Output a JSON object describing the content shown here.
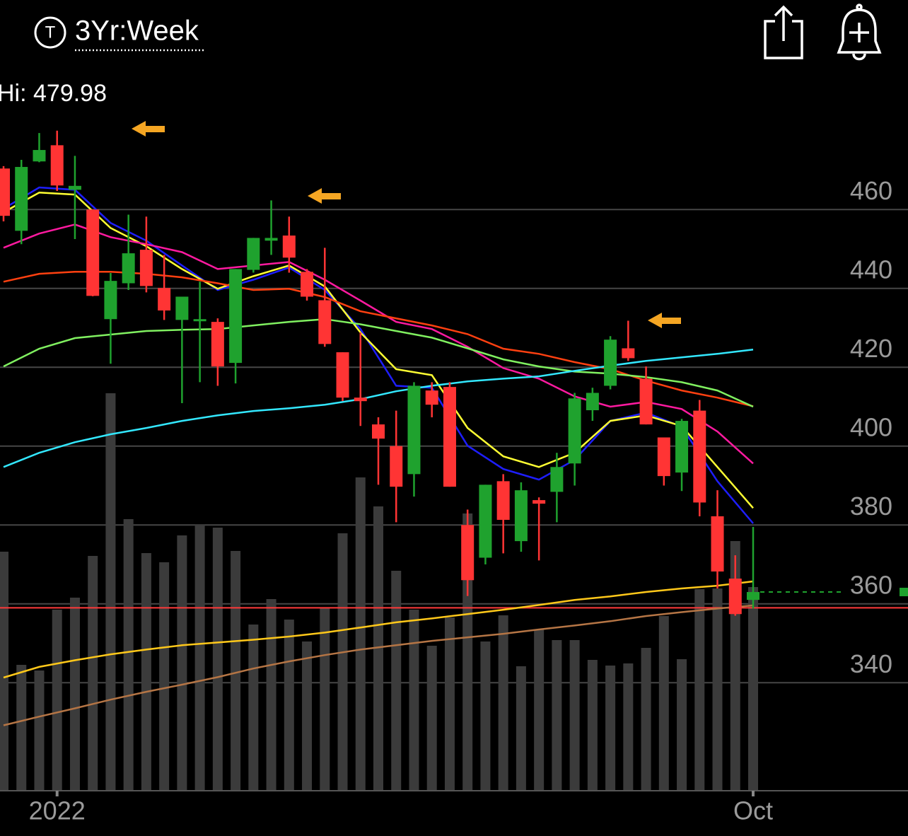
{
  "chart_data": {
    "type": "candlestick",
    "icon_letter": "T",
    "period": "3Yr:Week",
    "hi_label": "Hi: 479.98",
    "categories": [
      null,
      null,
      null,
      "2022",
      null,
      null,
      null,
      null,
      null,
      null,
      null,
      null,
      null,
      null,
      null,
      null,
      null,
      null,
      null,
      null,
      null,
      null,
      null,
      null,
      null,
      null,
      null,
      null,
      null,
      null,
      null,
      null,
      null,
      null,
      null,
      null,
      null,
      null,
      null,
      null,
      null,
      null,
      "Oct"
    ],
    "open": [
      470.4,
      454.6,
      472.2,
      476.3,
      465.0,
      460.0,
      432.2,
      441.3,
      449.8,
      440.1,
      432.0,
      432.0,
      431.5,
      421.1,
      444.7,
      452.1,
      453.4,
      444.2,
      437.0,
      423.8,
      412.3,
      405.5,
      400.0,
      392.9,
      414.1,
      415.0,
      380.0,
      371.7,
      391.1,
      375.9,
      386.3,
      388.4,
      395.6,
      409.1,
      415.3,
      424.8,
      417.1,
      402.2,
      393.3,
      409.0,
      382.2,
      366.4,
      361.0
    ],
    "high": [
      471.0,
      472.6,
      479.4,
      480.0,
      473.6,
      460.0,
      443.9,
      458.7,
      458.2,
      448.5,
      437.9,
      441.7,
      432.4,
      444.9,
      452.8,
      462.3,
      458.2,
      444.9,
      450.3,
      423.8,
      428.8,
      407.3,
      409.0,
      416.2,
      416.2,
      416.2,
      383.9,
      390.2,
      392.9,
      390.8,
      387.0,
      398.3,
      413.5,
      414.8,
      427.9,
      431.8,
      420.2,
      402.2,
      406.9,
      411.7,
      388.8,
      372.3,
      379.5
    ],
    "low": [
      457.0,
      451.2,
      472.0,
      464.7,
      452.5,
      438.0,
      420.9,
      439.6,
      439.0,
      432.0,
      410.9,
      416.2,
      415.3,
      415.9,
      444.0,
      448.5,
      444.0,
      436.9,
      425.2,
      411.4,
      405.1,
      390.2,
      380.7,
      387.2,
      407.3,
      389.7,
      362.0,
      370.0,
      372.8,
      373.2,
      371.0,
      380.7,
      390.0,
      406.4,
      414.4,
      421.6,
      405.5,
      390.0,
      388.6,
      382.2,
      363.9,
      357.0,
      358.8
    ],
    "close": [
      458.4,
      470.8,
      475.1,
      466.1,
      466.0,
      438.1,
      441.9,
      448.9,
      440.6,
      434.4,
      437.9,
      432.2,
      420.2,
      444.9,
      452.8,
      452.8,
      447.8,
      437.9,
      425.9,
      412.3,
      411.4,
      401.9,
      389.7,
      415.3,
      410.5,
      389.7,
      366.0,
      390.2,
      381.3,
      388.8,
      385.4,
      394.7,
      412.1,
      413.5,
      427.0,
      422.3,
      405.5,
      392.4,
      406.4,
      385.7,
      368.2,
      357.4,
      363.0
    ],
    "up_color": "#1fa22e",
    "down_color": "#ff3434",
    "volume": [
      338,
      178,
      170,
      256,
      273,
      332,
      562,
      384,
      336,
      323,
      361,
      376,
      372,
      339,
      235,
      271,
      242,
      211,
      259,
      364,
      443,
      402,
      311,
      256,
      205,
      245,
      392,
      211,
      248,
      176,
      228,
      213,
      213,
      185,
      177,
      180,
      202,
      247,
      186,
      285,
      286,
      353,
      288
    ],
    "volume_lim": [
      0,
      1018
    ],
    "volume_color": "#3b3b3b",
    "ma_x": [
      0,
      2,
      4,
      6,
      8,
      10,
      12,
      14,
      16,
      18,
      20,
      22,
      24,
      26,
      28,
      30,
      32,
      34,
      36,
      38,
      40,
      42
    ],
    "lines": [
      {
        "color": "#1e1eff",
        "values": [
          460.2,
          465.6,
          465.0,
          456.6,
          452.1,
          445.8,
          439.6,
          442.2,
          445.3,
          439.6,
          429.7,
          415.3,
          414.8,
          400.1,
          394.2,
          391.5,
          396.5,
          406.4,
          408.5,
          404.9,
          391.1,
          380.4
        ]
      },
      {
        "color": "#ffff33",
        "values": [
          459.3,
          464.3,
          463.8,
          455.3,
          450.7,
          444.9,
          439.9,
          443.1,
          445.8,
          440.5,
          428.8,
          419.5,
          418.0,
          404.6,
          397.4,
          394.7,
          398.3,
          406.4,
          407.8,
          405.1,
          394.7,
          384.3
        ]
      },
      {
        "color": "#ff1aa0",
        "values": [
          450.3,
          453.9,
          456.2,
          453.0,
          451.2,
          449.2,
          444.9,
          445.8,
          446.7,
          442.2,
          436.9,
          431.5,
          429.7,
          425.2,
          419.8,
          417.1,
          412.6,
          410.0,
          411.2,
          409.4,
          403.7,
          395.6
        ]
      },
      {
        "color": "#ff4010",
        "values": [
          441.7,
          443.7,
          444.2,
          444.2,
          443.7,
          442.8,
          441.3,
          439.6,
          439.9,
          437.8,
          434.2,
          432.4,
          430.6,
          428.4,
          424.7,
          423.4,
          421.3,
          419.5,
          416.6,
          414.1,
          412.3,
          410.1
        ]
      },
      {
        "color": "#80f060",
        "values": [
          420.2,
          424.7,
          427.4,
          428.3,
          429.2,
          429.5,
          429.7,
          430.6,
          431.5,
          432.2,
          430.9,
          429.2,
          427.5,
          424.8,
          422.0,
          420.2,
          418.9,
          418.4,
          417.5,
          416.2,
          414.1,
          410.0
        ]
      },
      {
        "color": "#33e8ff",
        "values": [
          394.7,
          398.3,
          401.0,
          403.0,
          404.6,
          406.4,
          407.8,
          408.9,
          409.6,
          410.5,
          411.9,
          413.9,
          415.3,
          416.4,
          417.1,
          417.7,
          419.1,
          420.4,
          421.6,
          422.5,
          423.4,
          424.5
        ]
      },
      {
        "color": "#ffc81a",
        "values": [
          341.3,
          344.0,
          345.7,
          347.2,
          348.4,
          349.5,
          350.2,
          350.9,
          351.7,
          352.7,
          354.0,
          355.3,
          356.3,
          357.4,
          358.5,
          359.7,
          361.0,
          361.9,
          363.0,
          363.9,
          364.6,
          365.7
        ]
      },
      {
        "color": "#b57545",
        "values": [
          329.2,
          331.4,
          333.5,
          335.7,
          337.7,
          339.5,
          341.4,
          343.6,
          345.4,
          347.0,
          348.4,
          349.5,
          350.6,
          351.5,
          352.4,
          353.5,
          354.5,
          355.6,
          356.9,
          357.9,
          358.8,
          359.6
        ]
      }
    ],
    "reference_line": 359.0,
    "reference_color": "#ff3b3b",
    "last_price": 363.0,
    "last_price_color": "#1fa22e",
    "ylim": [
      312.6,
      495.2
    ],
    "yticks": [
      340,
      360,
      380,
      400,
      420,
      440,
      460
    ],
    "grid": true
  }
}
